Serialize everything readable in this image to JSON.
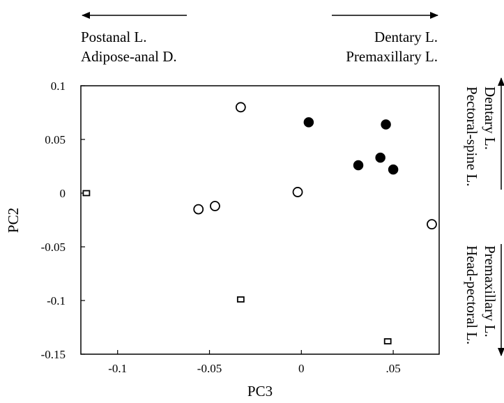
{
  "chart_data": {
    "type": "scatter",
    "xlabel": "PC3",
    "ylabel": "PC2",
    "xlim": [
      -0.12,
      0.075
    ],
    "ylim": [
      -0.15,
      0.1
    ],
    "xticks": [
      {
        "value": -0.1,
        "label": "-0.1"
      },
      {
        "value": -0.05,
        "label": "-0.05"
      },
      {
        "value": 0,
        "label": "0"
      },
      {
        "value": 0.05,
        "label": ".05"
      }
    ],
    "yticks": [
      {
        "value": 0.1,
        "label": "0.1"
      },
      {
        "value": 0.05,
        "label": "0.05"
      },
      {
        "value": 0,
        "label": "0"
      },
      {
        "value": -0.05,
        "label": "-0.05"
      },
      {
        "value": -0.1,
        "label": "-0.1"
      },
      {
        "value": -0.15,
        "label": "-0.15"
      }
    ],
    "grid": false,
    "series": [
      {
        "marker": "filled-circle",
        "points": [
          {
            "x": 0.004,
            "y": 0.066
          },
          {
            "x": 0.046,
            "y": 0.064
          },
          {
            "x": 0.043,
            "y": 0.033
          },
          {
            "x": 0.031,
            "y": 0.026
          },
          {
            "x": 0.05,
            "y": 0.022
          }
        ]
      },
      {
        "marker": "open-circle",
        "points": [
          {
            "x": -0.033,
            "y": 0.08
          },
          {
            "x": -0.002,
            "y": 0.001
          },
          {
            "x": -0.056,
            "y": -0.015
          },
          {
            "x": -0.047,
            "y": -0.012
          },
          {
            "x": 0.071,
            "y": -0.029
          }
        ]
      },
      {
        "marker": "open-square",
        "points": [
          {
            "x": -0.117,
            "y": 0.0
          },
          {
            "x": -0.033,
            "y": -0.099
          },
          {
            "x": 0.047,
            "y": -0.138
          }
        ]
      }
    ]
  },
  "annotations": {
    "top_left": {
      "line1": "Postanal L.",
      "line2": "Adipose-anal D."
    },
    "top_right": {
      "line1": "Dentary L.",
      "line2": "Premaxillary L."
    },
    "right_upper": {
      "line1": "Dentary L.",
      "line2": "Pectoral-spine L."
    },
    "right_lower": {
      "line1": "Premaxillary L.",
      "line2": "Head-pectoral L."
    }
  }
}
